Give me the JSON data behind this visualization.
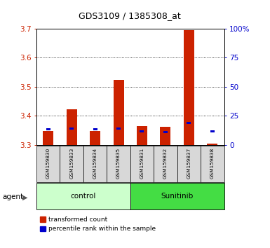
{
  "title": "GDS3109 / 1385308_at",
  "samples": [
    "GSM159830",
    "GSM159833",
    "GSM159834",
    "GSM159835",
    "GSM159831",
    "GSM159832",
    "GSM159837",
    "GSM159838"
  ],
  "red_values": [
    3.348,
    3.422,
    3.348,
    3.525,
    3.365,
    3.362,
    3.695,
    3.305
  ],
  "blue_values": [
    3.355,
    3.357,
    3.355,
    3.357,
    3.348,
    3.345,
    3.375,
    3.348
  ],
  "baseline": 3.3,
  "ylim_left": [
    3.3,
    3.7
  ],
  "yticks_left": [
    3.3,
    3.4,
    3.5,
    3.6,
    3.7
  ],
  "ylim_right": [
    0,
    100
  ],
  "yticks_right": [
    0,
    25,
    50,
    75,
    100
  ],
  "yticklabels_right": [
    "0",
    "25",
    "50",
    "75",
    "100%"
  ],
  "red_color": "#cc2200",
  "blue_color": "#0000cc",
  "group_colors": [
    "#ccffcc",
    "#44dd44"
  ],
  "agent_label": "agent",
  "legend_red": "transformed count",
  "legend_blue": "percentile rank within the sample",
  "bar_width": 0.45,
  "blue_bar_width": 0.18,
  "blue_bar_height": 0.007,
  "bg_color": "#d8d8d8",
  "plot_bg": "#ffffff",
  "title_color": "#000000",
  "left_tick_color": "#cc2200",
  "right_tick_color": "#0000cc",
  "grid_color": "#000000",
  "fig_width": 3.85,
  "fig_height": 3.54,
  "dpi": 100
}
